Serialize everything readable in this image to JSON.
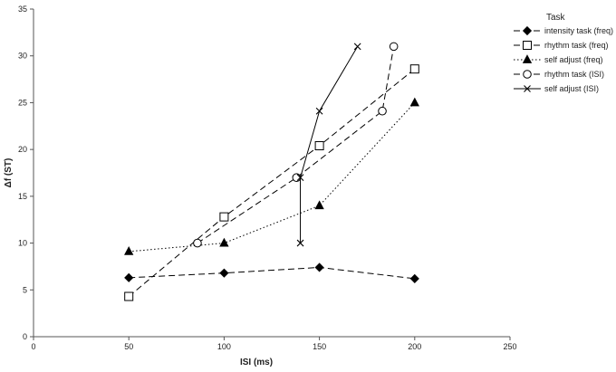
{
  "chart_data": {
    "type": "line",
    "xlabel": "ISI (ms)",
    "ylabel": "Δf (ST)",
    "xlim": [
      0,
      250
    ],
    "ylim": [
      0,
      35
    ],
    "x_ticks": [
      "0",
      "50",
      "100",
      "150",
      "200",
      "250"
    ],
    "y_ticks": [
      "0",
      "5",
      "10",
      "15",
      "20",
      "25",
      "30",
      "35"
    ],
    "grid": false,
    "legend_title": "Task",
    "legend_position": "top-right",
    "series": [
      {
        "name": "intensity task (freq)",
        "line": "dashed",
        "marker": "diamond",
        "points": [
          [
            50,
            6.3
          ],
          [
            100,
            6.8
          ],
          [
            150,
            7.4
          ],
          [
            200,
            6.2
          ]
        ]
      },
      {
        "name": "rhythm task (freq)",
        "line": "dashed",
        "marker": "square-open",
        "points": [
          [
            50,
            4.3
          ],
          [
            100,
            12.8
          ],
          [
            150,
            20.4
          ],
          [
            200,
            28.6
          ]
        ]
      },
      {
        "name": "self adjust (freq)",
        "line": "dotted",
        "marker": "triangle",
        "points": [
          [
            50,
            9.1
          ],
          [
            100,
            10.0
          ],
          [
            150,
            14.0
          ],
          [
            200,
            25.0
          ]
        ]
      },
      {
        "name": "rhythm task (ISI)",
        "line": "dashed",
        "marker": "circle-open",
        "points": [
          [
            86,
            10.0
          ],
          [
            138,
            17.0
          ],
          [
            183,
            24.1
          ],
          [
            189,
            31.0
          ]
        ]
      },
      {
        "name": "self adjust (ISI)",
        "line": "solid",
        "marker": "x",
        "points": [
          [
            140,
            10.0
          ],
          [
            140,
            17.0
          ],
          [
            150,
            24.1
          ],
          [
            170,
            31.0
          ]
        ]
      }
    ]
  }
}
